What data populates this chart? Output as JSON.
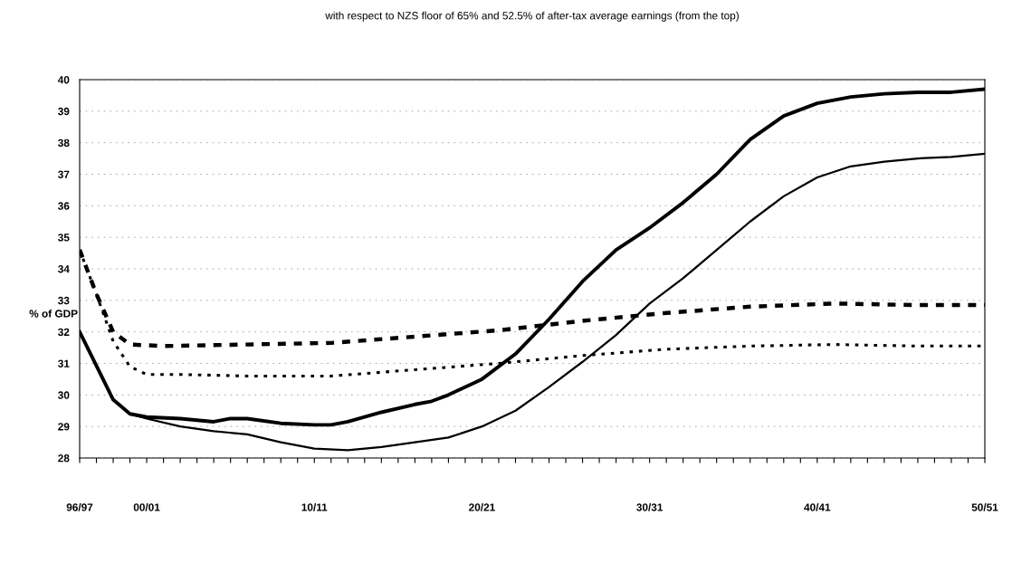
{
  "chart_data": {
    "type": "line",
    "title": "with respect to NZS floor of 65% and 52.5% of after-tax average earnings (from the top)",
    "ylabel": "% of GDP",
    "categories": [
      "96/97",
      null,
      null,
      null,
      "00/01",
      null,
      null,
      null,
      null,
      null,
      null,
      null,
      null,
      null,
      "10/11",
      null,
      null,
      null,
      null,
      null,
      null,
      null,
      null,
      null,
      "20/21",
      null,
      null,
      null,
      null,
      null,
      null,
      null,
      null,
      null,
      "30/31",
      null,
      null,
      null,
      null,
      null,
      null,
      null,
      null,
      null,
      "40/41",
      null,
      null,
      null,
      null,
      null,
      null,
      null,
      null,
      null,
      "50/51"
    ],
    "ylim": [
      28,
      40
    ],
    "yticks": [
      28,
      29,
      30,
      31,
      32,
      33,
      34,
      35,
      36,
      37,
      38,
      39,
      40
    ],
    "grid": "y",
    "series": [
      {
        "color": "#000000",
        "line_style": "solid",
        "values": [
          32.0,
          null,
          29.85,
          29.4,
          29.3,
          null,
          29.25,
          null,
          29.15,
          29.25,
          29.25,
          null,
          29.1,
          null,
          29.05,
          29.05,
          29.15,
          null,
          29.45,
          null,
          29.7,
          29.8,
          30.0,
          null,
          30.5,
          null,
          31.3,
          null,
          32.4,
          null,
          33.6,
          null,
          34.6,
          null,
          35.3,
          null,
          36.1,
          null,
          37.0,
          null,
          38.1,
          null,
          38.85,
          null,
          39.25,
          null,
          39.45,
          null,
          39.55,
          null,
          39.6,
          null,
          39.6,
          null,
          39.7
        ]
      },
      {
        "color": "#000000",
        "line_style": "solid",
        "values": [
          32.0,
          null,
          29.85,
          29.4,
          29.25,
          null,
          29.0,
          null,
          28.85,
          null,
          28.75,
          null,
          28.5,
          null,
          28.3,
          null,
          28.25,
          null,
          28.35,
          null,
          28.5,
          null,
          28.65,
          null,
          29.0,
          null,
          29.5,
          null,
          30.25,
          null,
          31.05,
          null,
          31.9,
          null,
          32.9,
          null,
          33.7,
          null,
          34.6,
          null,
          35.5,
          null,
          36.3,
          null,
          36.9,
          null,
          37.25,
          null,
          37.4,
          null,
          37.5,
          null,
          37.55,
          null,
          37.65
        ]
      },
      {
        "color": "#000000",
        "line_style": "dashed",
        "values": [
          34.6,
          33.2,
          32.0,
          31.6,
          null,
          31.55,
          null,
          null,
          null,
          null,
          31.6,
          null,
          null,
          null,
          null,
          31.65,
          null,
          null,
          null,
          null,
          31.85,
          null,
          null,
          null,
          null,
          32.05,
          null,
          null,
          null,
          null,
          32.35,
          null,
          null,
          null,
          null,
          32.6,
          null,
          null,
          null,
          null,
          32.8,
          null,
          null,
          null,
          null,
          32.9,
          null,
          null,
          null,
          null,
          32.85,
          null,
          null,
          null,
          32.85
        ]
      },
      {
        "color": "#000000",
        "line_style": "dotted",
        "values": [
          34.6,
          33.2,
          31.7,
          30.9,
          30.65,
          null,
          30.65,
          null,
          null,
          null,
          30.6,
          null,
          null,
          null,
          null,
          30.6,
          null,
          null,
          null,
          null,
          30.8,
          null,
          null,
          null,
          null,
          31.0,
          null,
          null,
          null,
          null,
          31.25,
          null,
          null,
          null,
          null,
          31.45,
          null,
          null,
          null,
          null,
          31.55,
          null,
          null,
          null,
          null,
          31.6,
          null,
          null,
          null,
          null,
          31.55,
          null,
          null,
          null,
          31.55
        ]
      }
    ]
  }
}
